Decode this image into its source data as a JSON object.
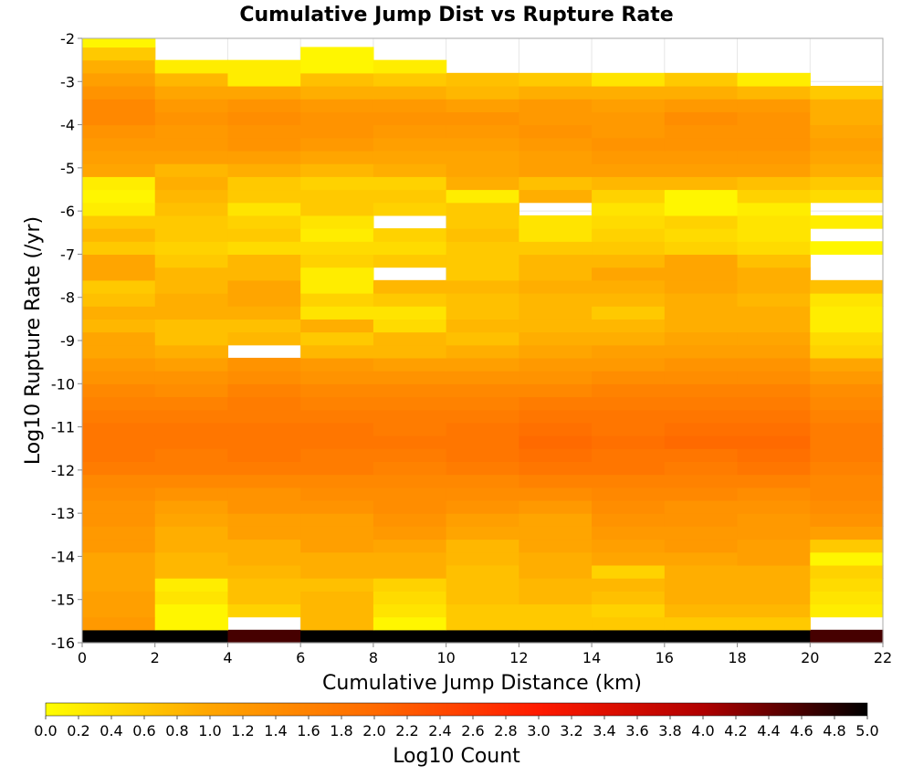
{
  "chart_data": {
    "type": "heatmap",
    "title": "Cumulative Jump Dist vs Rupture Rate",
    "xlabel": "Cumulative Jump Distance (km)",
    "ylabel": "Log10 Rupture Rate (/yr)",
    "colorbar_label": "Log10 Count",
    "xlim": [
      0,
      22
    ],
    "ylim": [
      -16,
      -2
    ],
    "x_ticks": [
      "0",
      "2",
      "4",
      "6",
      "8",
      "10",
      "12",
      "14",
      "16",
      "18",
      "20",
      "22"
    ],
    "y_ticks": [
      "-2",
      "-3",
      "-4",
      "-5",
      "-6",
      "-7",
      "-8",
      "-9",
      "-10",
      "-11",
      "-12",
      "-13",
      "-14",
      "-15",
      "-16"
    ],
    "colorbar_ticks": [
      "0.0",
      "0.2",
      "0.4",
      "0.6",
      "0.8",
      "1.0",
      "1.2",
      "1.4",
      "1.6",
      "1.8",
      "2.0",
      "2.2",
      "2.4",
      "2.6",
      "2.8",
      "3.0",
      "3.2",
      "3.4",
      "3.6",
      "3.8",
      "4.0",
      "4.2",
      "4.4",
      "4.6",
      "4.8",
      "5.0"
    ],
    "color_range": [
      0,
      5
    ],
    "colormap_stops": [
      "#ffff00",
      "#ffa500",
      "#ff6a00",
      "#ff1a00",
      "#b00000",
      "#000000"
    ],
    "x_bin_edges": [
      0,
      2,
      4,
      6,
      8,
      10,
      12,
      14,
      16,
      18,
      20,
      22
    ],
    "y_bin_start": -16,
    "y_bin_size": 0.3,
    "values": [
      [
        5.0,
        5.0,
        4.6,
        5.0,
        5.0,
        5.0,
        5.0,
        5.0,
        5.0,
        5.0,
        4.6
      ],
      [
        1.2,
        0.1,
        null,
        0.8,
        0.1,
        0.6,
        0.6,
        0.6,
        0.6,
        0.6,
        null
      ],
      [
        1.1,
        0.1,
        0.5,
        0.8,
        0.3,
        0.6,
        0.6,
        0.5,
        0.8,
        0.8,
        0.2
      ],
      [
        1.1,
        0.3,
        0.7,
        0.8,
        0.4,
        0.7,
        0.8,
        0.7,
        0.9,
        0.9,
        0.3
      ],
      [
        1.0,
        0.2,
        0.7,
        0.7,
        0.5,
        0.7,
        0.8,
        0.8,
        0.9,
        0.9,
        0.4
      ],
      [
        1.0,
        0.8,
        0.8,
        0.9,
        0.9,
        0.7,
        0.9,
        0.5,
        0.9,
        0.9,
        0.5
      ],
      [
        1.0,
        0.8,
        0.9,
        0.9,
        0.9,
        0.8,
        0.9,
        1.0,
        1.0,
        1.1,
        0.1
      ],
      [
        1.2,
        0.9,
        0.9,
        1.1,
        1.0,
        0.8,
        1.0,
        1.1,
        1.2,
        1.1,
        0.6
      ],
      [
        1.2,
        0.9,
        1.1,
        1.1,
        1.2,
        1.0,
        1.0,
        1.2,
        1.2,
        1.2,
        1.1
      ],
      [
        1.3,
        1.0,
        1.1,
        1.1,
        1.3,
        1.1,
        1.0,
        1.3,
        1.3,
        1.2,
        1.3
      ],
      [
        1.3,
        1.1,
        1.3,
        1.3,
        1.4,
        1.3,
        1.2,
        1.4,
        1.3,
        1.3,
        1.4
      ],
      [
        1.4,
        1.3,
        1.3,
        1.4,
        1.4,
        1.4,
        1.4,
        1.5,
        1.5,
        1.4,
        1.5
      ],
      [
        1.5,
        1.5,
        1.5,
        1.5,
        1.5,
        1.5,
        1.6,
        1.6,
        1.6,
        1.6,
        1.5
      ],
      [
        1.7,
        1.7,
        1.7,
        1.7,
        1.6,
        1.7,
        1.8,
        1.8,
        1.7,
        1.8,
        1.6
      ],
      [
        1.8,
        1.7,
        1.8,
        1.7,
        1.7,
        1.8,
        1.9,
        1.8,
        1.8,
        1.9,
        1.7
      ],
      [
        1.8,
        1.8,
        1.8,
        1.8,
        1.8,
        1.8,
        2.0,
        1.9,
        2.0,
        2.0,
        1.7
      ],
      [
        1.8,
        1.8,
        1.8,
        1.8,
        1.7,
        1.8,
        1.9,
        1.8,
        1.9,
        1.9,
        1.7
      ],
      [
        1.7,
        1.7,
        1.7,
        1.7,
        1.7,
        1.7,
        1.8,
        1.8,
        1.8,
        1.8,
        1.6
      ],
      [
        1.6,
        1.6,
        1.7,
        1.6,
        1.6,
        1.6,
        1.7,
        1.7,
        1.7,
        1.7,
        1.5
      ],
      [
        1.5,
        1.4,
        1.6,
        1.5,
        1.5,
        1.5,
        1.5,
        1.6,
        1.6,
        1.6,
        1.4
      ],
      [
        1.3,
        1.3,
        1.4,
        1.3,
        1.3,
        1.3,
        1.3,
        1.4,
        1.4,
        1.4,
        1.2
      ],
      [
        1.2,
        1.1,
        1.3,
        1.2,
        1.1,
        1.1,
        1.2,
        1.2,
        1.3,
        1.3,
        1.0
      ],
      [
        1.0,
        0.9,
        null,
        0.8,
        0.8,
        0.9,
        1.0,
        1.1,
        1.1,
        1.1,
        0.5
      ],
      [
        1.0,
        0.7,
        0.8,
        0.6,
        0.8,
        0.7,
        0.9,
        0.9,
        1.0,
        1.0,
        0.4
      ],
      [
        0.8,
        0.7,
        0.7,
        0.9,
        0.4,
        0.8,
        0.8,
        0.8,
        0.9,
        0.9,
        0.2
      ],
      [
        0.9,
        0.9,
        0.9,
        0.3,
        0.3,
        0.7,
        0.8,
        0.6,
        0.9,
        0.9,
        0.2
      ],
      [
        0.7,
        0.9,
        1.0,
        0.5,
        0.6,
        0.7,
        0.8,
        0.8,
        0.9,
        0.8,
        0.3
      ],
      [
        0.6,
        0.8,
        1.0,
        0.2,
        0.8,
        0.8,
        0.9,
        0.9,
        1.0,
        0.9,
        0.7
      ],
      [
        1.0,
        0.8,
        0.8,
        0.2,
        null,
        0.6,
        0.8,
        1.0,
        1.0,
        0.9,
        null
      ],
      [
        1.0,
        0.6,
        0.8,
        0.5,
        0.6,
        0.6,
        0.8,
        0.8,
        1.0,
        0.7,
        null
      ],
      [
        0.6,
        0.5,
        0.4,
        0.4,
        0.4,
        0.6,
        0.6,
        0.6,
        0.5,
        0.4,
        0.1
      ],
      [
        0.8,
        0.6,
        0.6,
        0.2,
        0.5,
        0.7,
        0.3,
        0.5,
        0.4,
        0.3,
        null
      ],
      [
        0.6,
        0.6,
        0.5,
        0.3,
        null,
        0.6,
        0.3,
        0.4,
        0.5,
        0.3,
        0.2
      ],
      [
        0.2,
        0.7,
        0.3,
        0.6,
        0.5,
        0.6,
        null,
        0.3,
        0.1,
        0.2,
        null
      ],
      [
        0.1,
        0.8,
        0.6,
        0.6,
        0.6,
        0.2,
        0.9,
        0.5,
        0.1,
        0.5,
        0.4
      ],
      [
        0.2,
        0.9,
        0.6,
        0.5,
        0.5,
        0.9,
        0.7,
        0.8,
        0.8,
        0.7,
        0.6
      ],
      [
        1.0,
        0.8,
        0.9,
        0.8,
        0.9,
        1.0,
        1.1,
        1.1,
        1.1,
        1.1,
        0.9
      ],
      [
        1.1,
        1.1,
        1.1,
        1.0,
        1.0,
        1.0,
        1.1,
        1.2,
        1.2,
        1.2,
        1.0
      ],
      [
        1.2,
        1.2,
        1.3,
        1.2,
        1.1,
        1.1,
        1.2,
        1.3,
        1.3,
        1.3,
        1.1
      ],
      [
        1.3,
        1.2,
        1.3,
        1.3,
        1.2,
        1.2,
        1.3,
        1.2,
        1.3,
        1.3,
        1.0
      ],
      [
        1.5,
        1.3,
        1.4,
        1.3,
        1.3,
        1.3,
        1.2,
        1.2,
        1.4,
        1.3,
        0.9
      ],
      [
        1.5,
        1.2,
        1.3,
        1.2,
        1.2,
        1.1,
        1.2,
        1.1,
        1.2,
        1.2,
        0.9
      ],
      [
        1.3,
        1.0,
        1.0,
        0.9,
        0.9,
        0.8,
        0.9,
        0.9,
        0.9,
        0.8,
        0.6
      ],
      [
        1.1,
        0.8,
        0.2,
        0.7,
        0.6,
        0.7,
        0.6,
        0.3,
        0.6,
        0.2,
        null
      ],
      [
        0.9,
        0.2,
        0.2,
        0.1,
        0.2,
        null,
        null,
        null,
        null,
        null,
        null
      ],
      [
        0.6,
        null,
        null,
        0.1,
        null,
        null,
        null,
        null,
        null,
        null,
        null
      ],
      [
        0.1,
        null,
        null,
        null,
        null,
        null,
        null,
        null,
        null,
        null,
        null
      ]
    ]
  }
}
